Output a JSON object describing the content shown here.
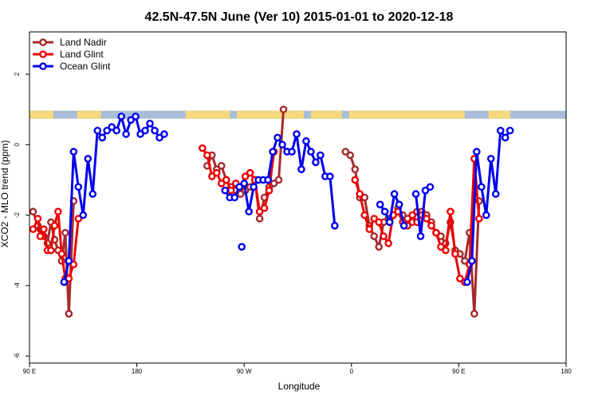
{
  "chart_data": {
    "type": "line",
    "title": "42.5N-47.5N June (Ver 10)   2015-01-01 to 2020-12-18",
    "xlabel": "Longitude",
    "ylabel": "XCO2 - MLO trend (ppm)",
    "xlim": [
      90,
      450
    ],
    "ylim": [
      -6.2,
      3.2
    ],
    "x_ticks": [
      {
        "value": 90,
        "label": "90 E"
      },
      {
        "value": 180,
        "label": "180"
      },
      {
        "value": 270,
        "label": "90 W"
      },
      {
        "value": 360,
        "label": "0"
      },
      {
        "value": 450,
        "label": "90 E"
      },
      {
        "value": 540,
        "label": "180"
      }
    ],
    "y_ticks": [
      {
        "value": 2,
        "label": "2"
      },
      {
        "value": 0,
        "label": "0"
      },
      {
        "value": -2,
        "label": "-2"
      },
      {
        "value": -4,
        "label": "-4"
      },
      {
        "value": -6,
        "label": "-6"
      }
    ],
    "x_domain": [
      90,
      540
    ],
    "legend_position": "top-left",
    "land_ocean_strip": {
      "y_center": 0.85,
      "land_color": "#F5D97A",
      "ocean_color": "#A9BDD9"
    },
    "series": [
      {
        "name": "Land Nadir",
        "color": "#A52A2A",
        "points": [
          [
            93,
            -1.9
          ],
          [
            97,
            -2.3
          ],
          [
            99,
            -2.4
          ],
          [
            102,
            -2.6
          ],
          [
            105,
            -2.8
          ],
          [
            108,
            -2.2
          ],
          [
            111,
            -2.7
          ],
          [
            114,
            -3.0
          ],
          [
            117,
            -3.3
          ],
          [
            120,
            -2.5
          ],
          [
            123,
            -4.8
          ],
          [
            127,
            -1.6
          ],
          [
            239,
            -0.6
          ],
          [
            243,
            -0.3
          ],
          [
            247,
            -0.7
          ],
          [
            251,
            -0.6
          ],
          [
            255,
            -1.0
          ],
          [
            259,
            -1.2
          ],
          [
            263,
            -1.3
          ],
          [
            267,
            -1.4
          ],
          [
            271,
            -1.3
          ],
          [
            275,
            -1.2
          ],
          [
            279,
            -1.0
          ],
          [
            283,
            -2.1
          ],
          [
            287,
            -1.5
          ],
          [
            291,
            -1.2
          ],
          [
            295,
            -1.1
          ],
          [
            299,
            -1.0
          ],
          [
            303,
            1.0
          ],
          [
            355,
            -0.2
          ],
          [
            359,
            -0.3
          ],
          [
            363,
            -0.7
          ],
          [
            367,
            -1.5
          ],
          [
            371,
            -1.5
          ],
          [
            375,
            -2.3
          ],
          [
            379,
            -2.6
          ],
          [
            383,
            -2.9
          ],
          [
            387,
            -2.2
          ],
          [
            391,
            -2.1
          ],
          [
            395,
            -2.0
          ],
          [
            399,
            -1.8
          ],
          [
            403,
            -2.0
          ],
          [
            407,
            -2.1
          ],
          [
            411,
            -2.2
          ],
          [
            415,
            -1.9
          ],
          [
            419,
            -1.9
          ],
          [
            423,
            -2.0
          ],
          [
            427,
            -2.2
          ],
          [
            431,
            -2.5
          ],
          [
            435,
            -2.6
          ],
          [
            439,
            -2.8
          ],
          [
            443,
            -2.2
          ],
          [
            447,
            -3.0
          ],
          [
            451,
            -3.1
          ],
          [
            455,
            -3.3
          ],
          [
            459,
            -2.5
          ],
          [
            463,
            -4.8
          ],
          [
            467,
            -1.6
          ]
        ]
      },
      {
        "name": "Land Glint",
        "color": "#EE0000",
        "points": [
          [
            93,
            -2.4
          ],
          [
            97,
            -2.1
          ],
          [
            99,
            -2.6
          ],
          [
            102,
            -2.4
          ],
          [
            105,
            -3.0
          ],
          [
            108,
            -3.0
          ],
          [
            111,
            -2.3
          ],
          [
            114,
            -1.9
          ],
          [
            117,
            -3.1
          ],
          [
            120,
            -3.8
          ],
          [
            123,
            -3.8
          ],
          [
            127,
            -3.4
          ],
          [
            131,
            -2.1
          ],
          [
            235,
            -0.1
          ],
          [
            239,
            -0.3
          ],
          [
            243,
            -0.9
          ],
          [
            247,
            -0.8
          ],
          [
            251,
            -1.1
          ],
          [
            255,
            -1.0
          ],
          [
            259,
            -1.3
          ],
          [
            263,
            -1.1
          ],
          [
            267,
            -1.2
          ],
          [
            271,
            -0.9
          ],
          [
            275,
            -0.8
          ],
          [
            279,
            -1.0
          ],
          [
            283,
            -1.9
          ],
          [
            287,
            -1.8
          ],
          [
            291,
            -1.3
          ],
          [
            295,
            -0.2
          ],
          [
            363,
            -1.0
          ],
          [
            367,
            -1.4
          ],
          [
            371,
            -2.0
          ],
          [
            375,
            -2.4
          ],
          [
            379,
            -2.1
          ],
          [
            383,
            -2.2
          ],
          [
            387,
            -2.6
          ],
          [
            391,
            -2.8
          ],
          [
            395,
            -2.0
          ],
          [
            399,
            -1.9
          ],
          [
            403,
            -2.2
          ],
          [
            407,
            -2.3
          ],
          [
            411,
            -2.0
          ],
          [
            415,
            -2.2
          ],
          [
            419,
            -2.0
          ],
          [
            423,
            -2.1
          ],
          [
            427,
            -2.3
          ],
          [
            431,
            -2.5
          ],
          [
            435,
            -2.9
          ],
          [
            439,
            -3.0
          ],
          [
            443,
            -1.9
          ],
          [
            447,
            -3.1
          ],
          [
            451,
            -3.8
          ],
          [
            455,
            -3.9
          ],
          [
            459,
            -3.4
          ],
          [
            463,
            -0.4
          ],
          [
            467,
            -2.1
          ]
        ]
      },
      {
        "name": "Ocean Glint",
        "color": "#0000EE",
        "points": [
          [
            119,
            -3.9
          ],
          [
            123,
            -3.3
          ],
          [
            127,
            -0.2
          ],
          [
            131,
            -1.2
          ],
          [
            135,
            -2.0
          ],
          [
            139,
            -0.4
          ],
          [
            143,
            -1.4
          ],
          [
            147,
            0.4
          ],
          [
            151,
            0.2
          ],
          [
            155,
            0.4
          ],
          [
            159,
            0.5
          ],
          [
            163,
            0.4
          ],
          [
            167,
            0.8
          ],
          [
            171,
            0.3
          ],
          [
            175,
            0.7
          ],
          [
            179,
            0.8
          ],
          [
            183,
            0.3
          ],
          [
            187,
            0.4
          ],
          [
            191,
            0.6
          ],
          [
            195,
            0.4
          ],
          [
            199,
            0.2
          ],
          [
            203,
            0.3
          ],
          [
            254,
            -1.3
          ],
          [
            258,
            -1.5
          ],
          [
            262,
            -1.5
          ],
          [
            266,
            -1.2
          ],
          [
            270,
            -1.1
          ],
          [
            274,
            -1.9
          ],
          [
            278,
            -1.2
          ],
          [
            282,
            -1.0
          ],
          [
            268,
            -2.9
          ],
          [
            286,
            -1.0
          ],
          [
            290,
            -1.0
          ],
          [
            294,
            -0.2
          ],
          [
            298,
            0.2
          ],
          [
            302,
            0.0
          ],
          [
            306,
            -0.2
          ],
          [
            310,
            -0.2
          ],
          [
            314,
            0.3
          ],
          [
            318,
            -0.7
          ],
          [
            322,
            0.1
          ],
          [
            326,
            -0.2
          ],
          [
            330,
            -0.5
          ],
          [
            334,
            -0.3
          ],
          [
            338,
            -0.9
          ],
          [
            342,
            -0.9
          ],
          [
            346,
            -2.3
          ],
          [
            384,
            -1.7
          ],
          [
            388,
            -1.9
          ],
          [
            392,
            -2.2
          ],
          [
            396,
            -1.4
          ],
          [
            400,
            -1.7
          ],
          [
            404,
            -2.3
          ],
          [
            414,
            -1.4
          ],
          [
            418,
            -2.6
          ],
          [
            422,
            -1.3
          ],
          [
            426,
            -1.2
          ],
          [
            457,
            -3.9
          ],
          [
            461,
            -3.3
          ],
          [
            465,
            -0.2
          ],
          [
            469,
            -1.2
          ],
          [
            473,
            -2.0
          ],
          [
            477,
            -0.4
          ],
          [
            481,
            -1.4
          ],
          [
            485,
            0.4
          ],
          [
            489,
            0.2
          ],
          [
            493,
            0.4
          ]
        ]
      }
    ]
  }
}
